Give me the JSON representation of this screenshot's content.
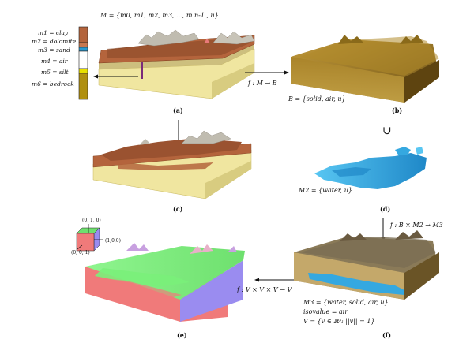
{
  "figure": {
    "top_formula": "M = {m0, m1, m2, m3, ..., m n-1 , u}",
    "legend": [
      {
        "label": "m1 = clay",
        "color": "#b4643c"
      },
      {
        "label": "m2 = dolomite",
        "color": "#c87850"
      },
      {
        "label": "m3 = sand",
        "color": "#2a9ad0"
      },
      {
        "label": "m4 = air",
        "color": "#ffffff"
      },
      {
        "label": "m5 = silt",
        "color": "#e8e000"
      },
      {
        "label": "m6 = bedrock",
        "color": "#b09010"
      }
    ],
    "panels": {
      "a": {
        "label": "(a)"
      },
      "b": {
        "label": "(b)",
        "map": "f : M → B",
        "set": "B = {solid, air, u}"
      },
      "union": "∪",
      "c": {
        "label": "(c)"
      },
      "d": {
        "label": "(d)",
        "set": "M2 = {water, u}"
      },
      "f_map": "f : B × M2 → M3",
      "e": {
        "label": "(e)",
        "map": "f : V × V × V → V"
      },
      "f": {
        "label": "(f)",
        "lines": [
          "M3 = {water, solid, air, u}",
          "isovalue = air",
          "V = {v ∈ ℝ³: ||v|| = 1}"
        ]
      }
    },
    "cube_axes": [
      "(0, 1, 0)",
      "(1,0,0)",
      "(0, 0, 1)"
    ],
    "colors": {
      "clay": "#b4643c",
      "bedrock_yellow": "#f0e6a0",
      "gold": "#b08a2a",
      "water": "#35a8e0",
      "green": "#7af07a",
      "pink": "#f07a7a",
      "violet": "#9a8cf0"
    }
  }
}
